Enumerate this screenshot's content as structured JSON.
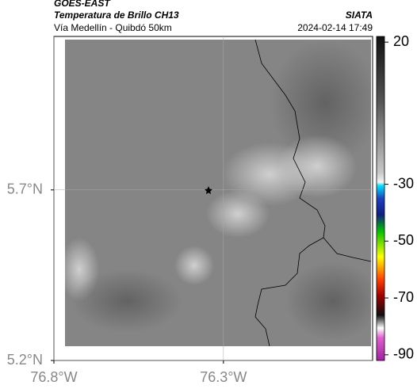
{
  "header": {
    "source": "GOES-EAST",
    "title": "Temperatura de Brillo CH13",
    "brand": "SIATA",
    "subtitle": "Vía Medellín - Quibdó 50km",
    "timestamp": "2024-02-14 17:49"
  },
  "map": {
    "xlim": [
      -76.8,
      -75.86
    ],
    "ylim": [
      5.2,
      6.15
    ],
    "xticks": [
      {
        "value": -76.8,
        "label": "76.8°W"
      },
      {
        "value": -76.3,
        "label": "76.3°W"
      }
    ],
    "yticks": [
      {
        "value": 5.7,
        "label": "5.7°N"
      },
      {
        "value": 5.2,
        "label": "5.2°N"
      }
    ],
    "grid": true
  },
  "colorbar": {
    "clim": [
      -92,
      22
    ],
    "ticks": [
      20,
      -30,
      -50,
      -70,
      -90
    ]
  }
}
